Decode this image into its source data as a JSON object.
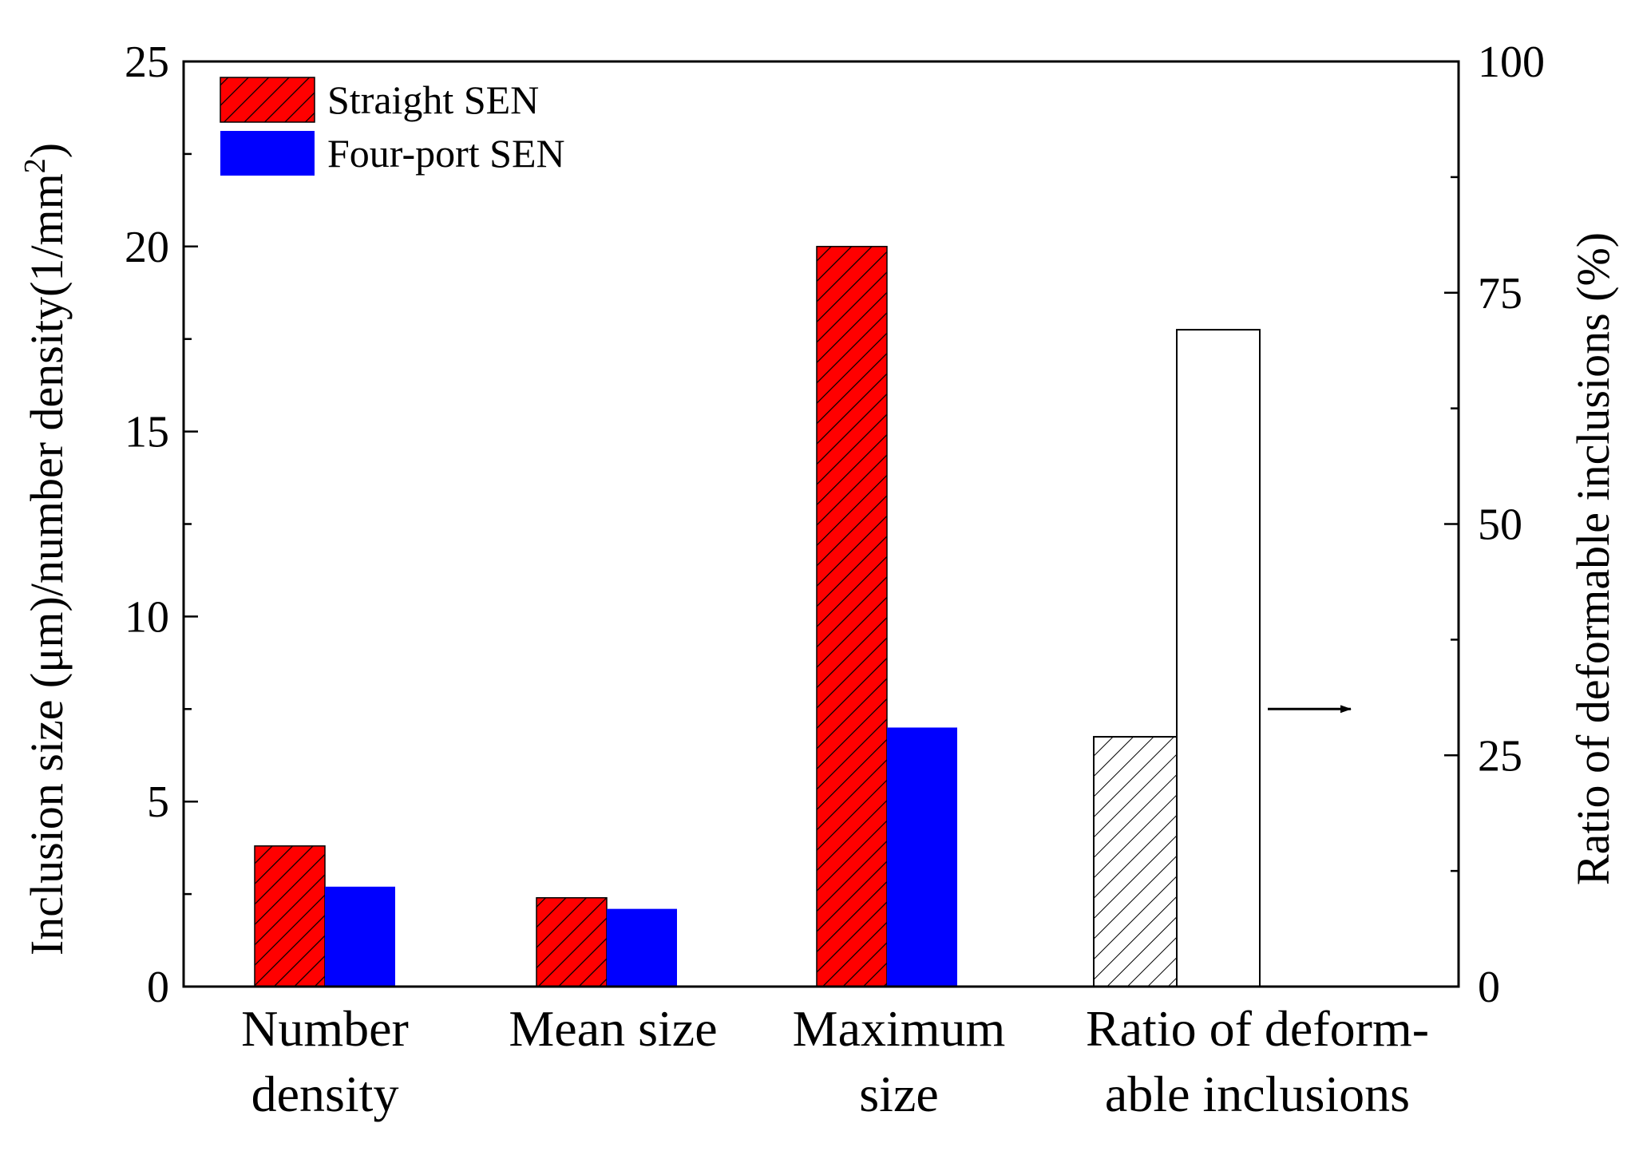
{
  "chart_data": {
    "type": "bar",
    "categories": [
      {
        "lines": [
          "Number",
          "density"
        ],
        "axis": "left"
      },
      {
        "lines": [
          "Mean size"
        ],
        "axis": "left"
      },
      {
        "lines": [
          "Maximum",
          "size"
        ],
        "axis": "left"
      },
      {
        "lines": [
          "Ratio of deform-",
          "able inclusions"
        ],
        "axis": "right"
      }
    ],
    "series": [
      {
        "name": "Straight SEN",
        "color": "#ff0000",
        "pattern": "hatch",
        "values": [
          3.8,
          2.4,
          20.0,
          27
        ]
      },
      {
        "name": "Four-port SEN",
        "color": "#0000ff",
        "pattern": "solid",
        "values": [
          2.7,
          2.1,
          7.0,
          71
        ]
      }
    ],
    "ratio_bar_colors": {
      "straight": "hatch-white",
      "four_port": "#ffffff"
    },
    "ylabel_left": "Inclusion size (μm)/number density(1/mm",
    "ylabel_left_superscript": "2",
    "ylabel_left_close": ")",
    "ylabel_right": "Ratio of deformable inclusions (%)",
    "ylim_left": [
      0,
      25
    ],
    "ylim_right": [
      0,
      100
    ],
    "yticks_left": [
      "0",
      "5",
      "10",
      "15",
      "20",
      "25"
    ],
    "yticks_right": [
      "0",
      "25",
      "50",
      "75",
      "100"
    ],
    "legend_position": "top-left",
    "annotation": {
      "type": "arrow",
      "direction": "right",
      "points_to_axis": "right",
      "y_value_right": 30
    }
  }
}
